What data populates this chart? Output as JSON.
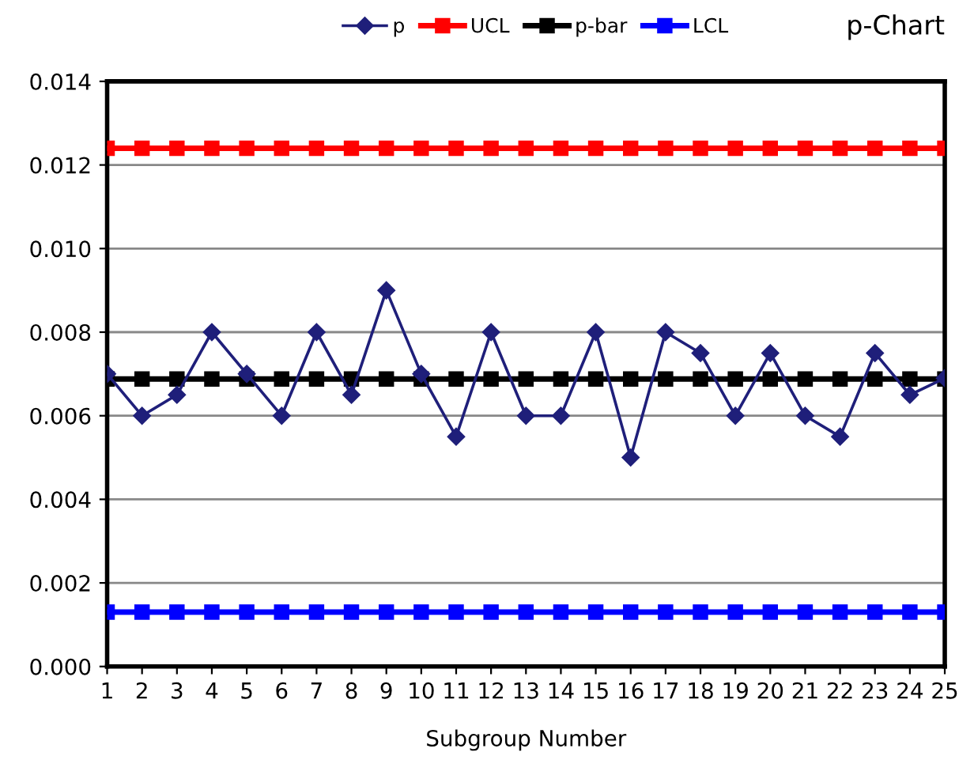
{
  "chart_data": {
    "type": "line",
    "title": "p-Chart",
    "xlabel": "Subgroup Number",
    "categories": [
      "1",
      "2",
      "3",
      "4",
      "5",
      "6",
      "7",
      "8",
      "9",
      "10",
      "11",
      "12",
      "13",
      "14",
      "15",
      "16",
      "17",
      "18",
      "19",
      "20",
      "21",
      "22",
      "23",
      "24",
      "25"
    ],
    "series": [
      {
        "name": "p",
        "color": "#1f1f7a",
        "marker": "diamond",
        "values": [
          0.007,
          0.006,
          0.0065,
          0.008,
          0.007,
          0.006,
          0.008,
          0.0065,
          0.009,
          0.007,
          0.0055,
          0.008,
          0.006,
          0.006,
          0.008,
          0.005,
          0.008,
          0.0075,
          0.006,
          0.0075,
          0.006,
          0.0055,
          0.0075,
          0.0065,
          0.0069
        ]
      },
      {
        "name": "UCL",
        "color": "#ff0000",
        "marker": "square",
        "values": [
          0.0124,
          0.0124,
          0.0124,
          0.0124,
          0.0124,
          0.0124,
          0.0124,
          0.0124,
          0.0124,
          0.0124,
          0.0124,
          0.0124,
          0.0124,
          0.0124,
          0.0124,
          0.0124,
          0.0124,
          0.0124,
          0.0124,
          0.0124,
          0.0124,
          0.0124,
          0.0124,
          0.0124,
          0.0124
        ]
      },
      {
        "name": "p-bar",
        "color": "#000000",
        "marker": "square",
        "values": [
          0.00688,
          0.00688,
          0.00688,
          0.00688,
          0.00688,
          0.00688,
          0.00688,
          0.00688,
          0.00688,
          0.00688,
          0.00688,
          0.00688,
          0.00688,
          0.00688,
          0.00688,
          0.00688,
          0.00688,
          0.00688,
          0.00688,
          0.00688,
          0.00688,
          0.00688,
          0.00688,
          0.00688,
          0.00688
        ]
      },
      {
        "name": "LCL",
        "color": "#0000ff",
        "marker": "square",
        "values": [
          0.0013,
          0.0013,
          0.0013,
          0.0013,
          0.0013,
          0.0013,
          0.0013,
          0.0013,
          0.0013,
          0.0013,
          0.0013,
          0.0013,
          0.0013,
          0.0013,
          0.0013,
          0.0013,
          0.0013,
          0.0013,
          0.0013,
          0.0013,
          0.0013,
          0.0013,
          0.0013,
          0.0013,
          0.0013
        ]
      }
    ],
    "ylim": [
      0,
      0.014
    ],
    "yticks": [
      {
        "value": 0,
        "label": "0.000"
      },
      {
        "value": 0.002,
        "label": "0.002"
      },
      {
        "value": 0.004,
        "label": "0.004"
      },
      {
        "value": 0.006,
        "label": "0.006"
      },
      {
        "value": 0.008,
        "label": "0.008"
      },
      {
        "value": 0.01,
        "label": "0.010"
      },
      {
        "value": 0.012,
        "label": "0.012"
      },
      {
        "value": 0.014,
        "label": "0.014"
      }
    ],
    "grid": "y",
    "legend": "top",
    "line_style": "solid"
  }
}
